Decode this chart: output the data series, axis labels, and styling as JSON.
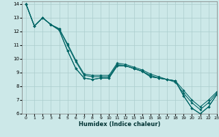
{
  "xlabel": "Humidex (Indice chaleur)",
  "bg_color": "#cce8e8",
  "grid_color": "#aacccc",
  "line_color": "#006666",
  "xlim": [
    -0.5,
    23
  ],
  "ylim": [
    6,
    14.2
  ],
  "xticks": [
    0,
    1,
    2,
    3,
    4,
    5,
    6,
    7,
    8,
    9,
    10,
    11,
    12,
    13,
    14,
    15,
    16,
    17,
    18,
    19,
    20,
    21,
    22,
    23
  ],
  "yticks": [
    6,
    7,
    8,
    9,
    10,
    11,
    12,
    13,
    14
  ],
  "series": [
    [
      14.0,
      12.4,
      13.0,
      12.5,
      12.1,
      10.6,
      9.3,
      8.6,
      8.5,
      8.6,
      8.6,
      9.5,
      9.5,
      9.3,
      9.1,
      8.7,
      8.6,
      8.5,
      8.4,
      7.3,
      6.4,
      6.0,
      6.5,
      7.4
    ],
    [
      14.0,
      12.4,
      13.0,
      12.5,
      12.2,
      11.0,
      9.8,
      8.8,
      8.7,
      8.7,
      8.7,
      9.6,
      9.5,
      9.3,
      9.1,
      8.8,
      8.6,
      8.5,
      8.3,
      7.5,
      6.8,
      6.3,
      6.8,
      7.5
    ],
    [
      14.0,
      12.4,
      13.0,
      12.5,
      12.2,
      11.1,
      9.9,
      8.9,
      8.8,
      8.8,
      8.8,
      9.7,
      9.6,
      9.4,
      9.2,
      8.9,
      8.7,
      8.5,
      8.4,
      7.7,
      7.0,
      6.5,
      7.0,
      7.6
    ],
    [
      14.0,
      12.4,
      13.0,
      12.5,
      12.1,
      10.6,
      9.3,
      8.6,
      8.5,
      8.6,
      8.6,
      9.5,
      9.5,
      9.3,
      9.1,
      8.7,
      8.6,
      8.5,
      8.4,
      7.3,
      6.4,
      6.0,
      6.5,
      7.4
    ]
  ]
}
